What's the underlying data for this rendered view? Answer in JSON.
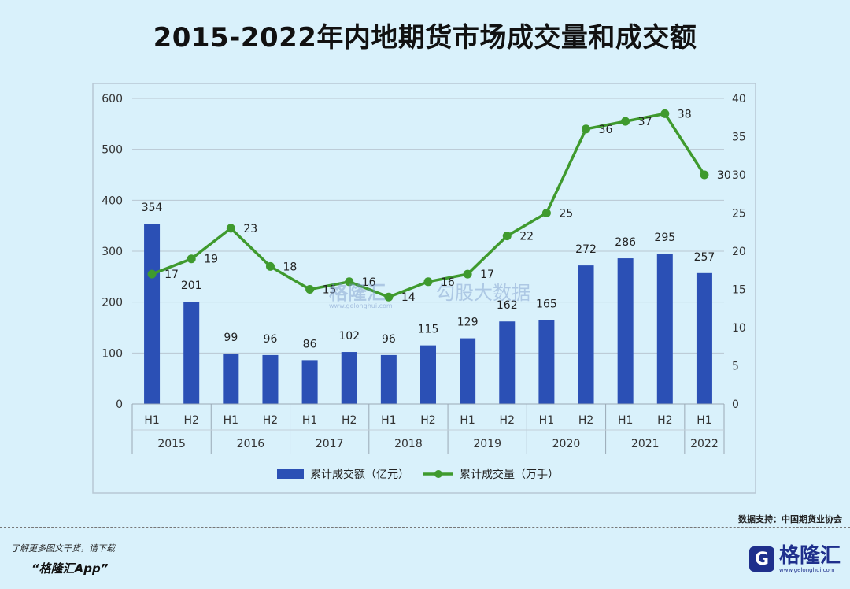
{
  "header": {
    "title": "2015-2022年内地期货市场成交量和成交额"
  },
  "chart_data": {
    "type": "bar+line",
    "title": "2015-2022年内地期货市场成交量和成交额",
    "categories": [
      "H1",
      "H2",
      "H1",
      "H2",
      "H1",
      "H2",
      "H1",
      "H2",
      "H1",
      "H2",
      "H1",
      "H2",
      "H1",
      "H2",
      "H1"
    ],
    "years": [
      {
        "label": "2015",
        "span": 2
      },
      {
        "label": "2016",
        "span": 2
      },
      {
        "label": "2017",
        "span": 2
      },
      {
        "label": "2018",
        "span": 2
      },
      {
        "label": "2019",
        "span": 2
      },
      {
        "label": "2020",
        "span": 2
      },
      {
        "label": "2021",
        "span": 2
      },
      {
        "label": "2022",
        "span": 1
      }
    ],
    "series": [
      {
        "name": "累计成交额（亿元）",
        "type": "bar",
        "axis": "left",
        "color": "#2b50b5",
        "values": [
          354,
          201,
          99,
          96,
          86,
          102,
          96,
          115,
          129,
          162,
          165,
          272,
          286,
          295,
          257
        ]
      },
      {
        "name": "累计成交量（万手）",
        "type": "line",
        "axis": "right",
        "color": "#3f9a2e",
        "values": [
          17,
          19,
          23,
          18,
          15,
          16,
          14,
          16,
          17,
          22,
          25,
          36,
          37,
          38,
          30
        ]
      }
    ],
    "y_left": {
      "min": 0,
      "max": 600,
      "ticks": [
        0,
        100,
        200,
        300,
        400,
        500,
        600
      ]
    },
    "y_right": {
      "min": 0,
      "max": 40,
      "ticks": [
        0,
        5,
        10,
        15,
        20,
        25,
        30,
        35,
        40
      ]
    },
    "grid": true,
    "legend": "bottom"
  },
  "watermark": {
    "main": "格隆汇",
    "sub": "勾股大数据",
    "url": "www.gelonghui.com"
  },
  "footer": {
    "source": "数据支持：中国期货业协会",
    "promo_line1": "了解更多图文干货，请下载",
    "promo_line2": "“格隆汇App”",
    "brand_logo": "G",
    "brand_name": "格隆汇",
    "brand_url": "www.gelonghui.com"
  }
}
